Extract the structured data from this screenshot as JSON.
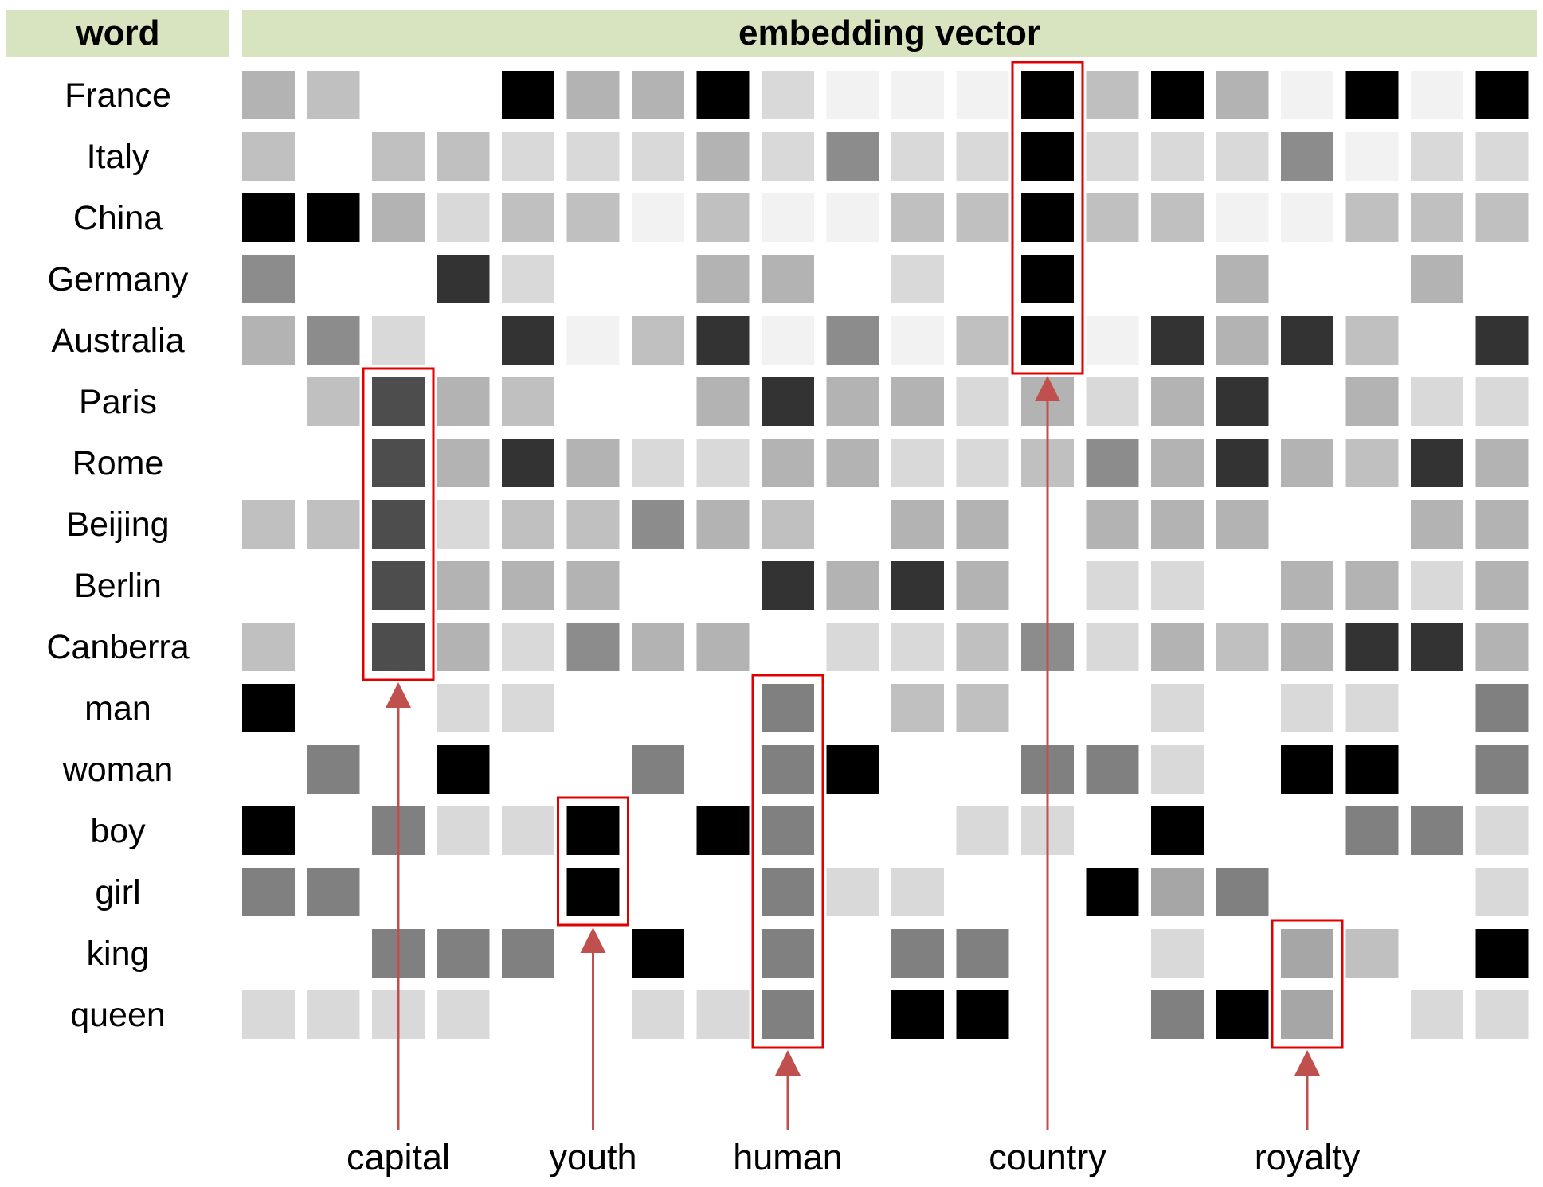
{
  "header": {
    "word": "word",
    "vector": "embedding vector"
  },
  "colors": {
    "header_bg": "#d8e4bf",
    "highlight": "#e00000",
    "arrow": "#c0504d"
  },
  "words": [
    "France",
    "Italy",
    "China",
    "Germany",
    "Australia",
    "Paris",
    "Rome",
    "Beijing",
    "Berlin",
    "Canberra",
    "man",
    "woman",
    "boy",
    "girl",
    "king",
    "queen"
  ],
  "matrix": [
    [
      "#b3b3b3",
      "#c0c0c0",
      "#ffffff",
      "#ffffff",
      "#000000",
      "#b3b3b3",
      "#b3b3b3",
      "#000000",
      "#d9d9d9",
      "#f2f2f2",
      "#f2f2f2",
      "#f2f2f2",
      "#000000",
      "#bfbfbf",
      "#000000",
      "#b3b3b3",
      "#f2f2f2",
      "#000000",
      "#f2f2f2",
      "#000000"
    ],
    [
      "#c0c0c0",
      "#ffffff",
      "#c0c0c0",
      "#c0c0c0",
      "#d9d9d9",
      "#d9d9d9",
      "#d9d9d9",
      "#b3b3b3",
      "#d9d9d9",
      "#8c8c8c",
      "#d9d9d9",
      "#d9d9d9",
      "#000000",
      "#d9d9d9",
      "#d9d9d9",
      "#d9d9d9",
      "#8c8c8c",
      "#f2f2f2",
      "#d9d9d9",
      "#d9d9d9"
    ],
    [
      "#000000",
      "#000000",
      "#b3b3b3",
      "#d9d9d9",
      "#c0c0c0",
      "#c0c0c0",
      "#f2f2f2",
      "#c0c0c0",
      "#f2f2f2",
      "#f2f2f2",
      "#c0c0c0",
      "#c0c0c0",
      "#000000",
      "#c0c0c0",
      "#c0c0c0",
      "#f2f2f2",
      "#f2f2f2",
      "#c0c0c0",
      "#c0c0c0",
      "#c0c0c0"
    ],
    [
      "#8c8c8c",
      "#ffffff",
      "#ffffff",
      "#333333",
      "#d9d9d9",
      "#ffffff",
      "#ffffff",
      "#b3b3b3",
      "#b3b3b3",
      "#ffffff",
      "#d9d9d9",
      "#ffffff",
      "#000000",
      "#ffffff",
      "#ffffff",
      "#b3b3b3",
      "#ffffff",
      "#ffffff",
      "#b3b3b3",
      "#ffffff"
    ],
    [
      "#b3b3b3",
      "#8c8c8c",
      "#d9d9d9",
      "#ffffff",
      "#333333",
      "#f2f2f2",
      "#c0c0c0",
      "#333333",
      "#f2f2f2",
      "#8c8c8c",
      "#f2f2f2",
      "#c0c0c0",
      "#000000",
      "#f2f2f2",
      "#333333",
      "#b3b3b3",
      "#333333",
      "#c0c0c0",
      "#ffffff",
      "#333333"
    ],
    [
      "#ffffff",
      "#c0c0c0",
      "#4d4d4d",
      "#b3b3b3",
      "#c0c0c0",
      "#ffffff",
      "#ffffff",
      "#b3b3b3",
      "#333333",
      "#b3b3b3",
      "#b3b3b3",
      "#d9d9d9",
      "#b3b3b3",
      "#d9d9d9",
      "#b3b3b3",
      "#333333",
      "#ffffff",
      "#b3b3b3",
      "#d9d9d9",
      "#d9d9d9"
    ],
    [
      "#ffffff",
      "#ffffff",
      "#4d4d4d",
      "#b3b3b3",
      "#333333",
      "#b3b3b3",
      "#d9d9d9",
      "#d9d9d9",
      "#b3b3b3",
      "#b3b3b3",
      "#d9d9d9",
      "#d9d9d9",
      "#c0c0c0",
      "#8c8c8c",
      "#b3b3b3",
      "#333333",
      "#b3b3b3",
      "#c0c0c0",
      "#333333",
      "#b3b3b3"
    ],
    [
      "#c0c0c0",
      "#c0c0c0",
      "#4d4d4d",
      "#d9d9d9",
      "#c0c0c0",
      "#c0c0c0",
      "#8c8c8c",
      "#b3b3b3",
      "#c0c0c0",
      "#ffffff",
      "#b3b3b3",
      "#b3b3b3",
      "#ffffff",
      "#b3b3b3",
      "#b3b3b3",
      "#b3b3b3",
      "#ffffff",
      "#ffffff",
      "#b3b3b3",
      "#b3b3b3"
    ],
    [
      "#ffffff",
      "#ffffff",
      "#4d4d4d",
      "#b3b3b3",
      "#b3b3b3",
      "#b3b3b3",
      "#ffffff",
      "#ffffff",
      "#333333",
      "#b3b3b3",
      "#333333",
      "#b3b3b3",
      "#ffffff",
      "#d9d9d9",
      "#d9d9d9",
      "#ffffff",
      "#b3b3b3",
      "#b3b3b3",
      "#d9d9d9",
      "#b3b3b3"
    ],
    [
      "#c0c0c0",
      "#ffffff",
      "#4d4d4d",
      "#b3b3b3",
      "#d9d9d9",
      "#8c8c8c",
      "#b3b3b3",
      "#b3b3b3",
      "#ffffff",
      "#d9d9d9",
      "#d9d9d9",
      "#c0c0c0",
      "#8c8c8c",
      "#d9d9d9",
      "#b3b3b3",
      "#c0c0c0",
      "#b3b3b3",
      "#333333",
      "#333333",
      "#b3b3b3"
    ],
    [
      "#000000",
      "#ffffff",
      "#ffffff",
      "#d9d9d9",
      "#d9d9d9",
      "#ffffff",
      "#ffffff",
      "#ffffff",
      "#808080",
      "#ffffff",
      "#c0c0c0",
      "#c0c0c0",
      "#ffffff",
      "#ffffff",
      "#d9d9d9",
      "#ffffff",
      "#d9d9d9",
      "#d9d9d9",
      "#ffffff",
      "#808080"
    ],
    [
      "#ffffff",
      "#808080",
      "#ffffff",
      "#000000",
      "#ffffff",
      "#ffffff",
      "#808080",
      "#ffffff",
      "#808080",
      "#000000",
      "#ffffff",
      "#ffffff",
      "#808080",
      "#808080",
      "#d9d9d9",
      "#ffffff",
      "#000000",
      "#000000",
      "#ffffff",
      "#808080"
    ],
    [
      "#000000",
      "#ffffff",
      "#808080",
      "#d9d9d9",
      "#d9d9d9",
      "#000000",
      "#ffffff",
      "#000000",
      "#808080",
      "#ffffff",
      "#ffffff",
      "#d9d9d9",
      "#d9d9d9",
      "#ffffff",
      "#000000",
      "#ffffff",
      "#ffffff",
      "#808080",
      "#808080",
      "#d9d9d9"
    ],
    [
      "#808080",
      "#808080",
      "#ffffff",
      "#ffffff",
      "#ffffff",
      "#000000",
      "#ffffff",
      "#ffffff",
      "#808080",
      "#d9d9d9",
      "#d9d9d9",
      "#ffffff",
      "#ffffff",
      "#000000",
      "#a6a6a6",
      "#808080",
      "#ffffff",
      "#ffffff",
      "#ffffff",
      "#d9d9d9"
    ],
    [
      "#ffffff",
      "#ffffff",
      "#808080",
      "#808080",
      "#808080",
      "#ffffff",
      "#000000",
      "#ffffff",
      "#808080",
      "#ffffff",
      "#808080",
      "#808080",
      "#ffffff",
      "#ffffff",
      "#d9d9d9",
      "#ffffff",
      "#a6a6a6",
      "#c0c0c0",
      "#ffffff",
      "#000000"
    ],
    [
      "#d9d9d9",
      "#d9d9d9",
      "#d9d9d9",
      "#d9d9d9",
      "#ffffff",
      "#ffffff",
      "#d9d9d9",
      "#d9d9d9",
      "#808080",
      "#ffffff",
      "#000000",
      "#000000",
      "#ffffff",
      "#ffffff",
      "#808080",
      "#000000",
      "#a6a6a6",
      "#ffffff",
      "#d9d9d9",
      "#d9d9d9"
    ]
  ],
  "features": [
    {
      "label": "capital",
      "column": 2,
      "row_start": 5,
      "row_end": 9
    },
    {
      "label": "youth",
      "column": 5,
      "row_start": 12,
      "row_end": 13
    },
    {
      "label": "human",
      "column": 8,
      "row_start": 10,
      "row_end": 15
    },
    {
      "label": "country",
      "column": 12,
      "row_start": 0,
      "row_end": 4
    },
    {
      "label": "royalty",
      "column": 16,
      "row_start": 14,
      "row_end": 15
    }
  ]
}
